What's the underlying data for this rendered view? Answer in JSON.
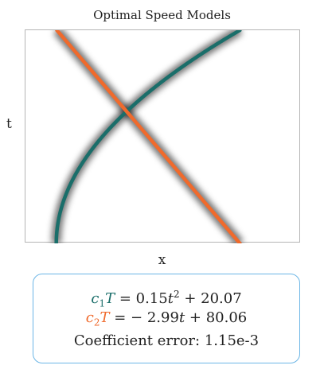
{
  "chart_data": {
    "type": "line",
    "title": "Optimal Speed Models",
    "xlabel": "x",
    "ylabel": "t",
    "grid": false,
    "series": [
      {
        "color": "#1a6e6a",
        "equation": {
          "coef": "c",
          "sub": "1",
          "var": "T",
          "rhs_pre": " = 0.15",
          "rhs_var": "t",
          "sup": "2",
          "rhs_post": " + 20.07"
        }
      },
      {
        "color": "#f06a2c",
        "equation": {
          "coef": "c",
          "sub": "2",
          "var": "T",
          "rhs_pre": " = − 2.99",
          "rhs_var": "t",
          "sup": "",
          "rhs_post": " + 80.06"
        }
      }
    ],
    "annotation": "Coefficient error: 1.15e-3"
  }
}
